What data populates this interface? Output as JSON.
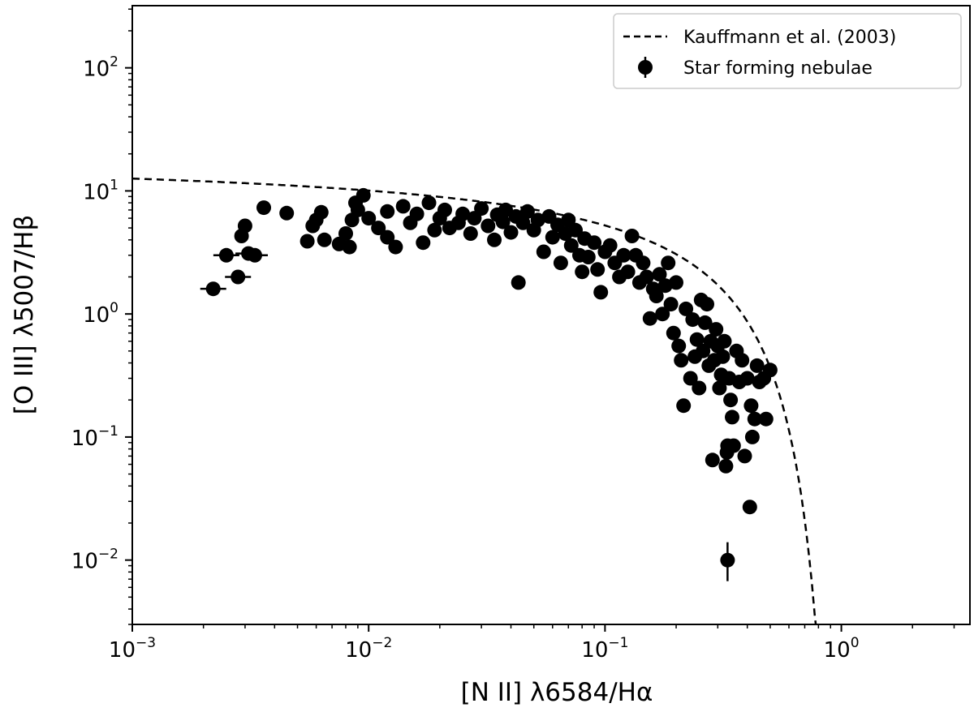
{
  "chart_data": {
    "type": "scatter",
    "xscale": "log",
    "yscale": "log",
    "xlim": [
      0.001,
      3.5
    ],
    "ylim": [
      0.003,
      320
    ],
    "xlabel": "[N II] λ6584/Hα",
    "ylabel": "[O III] λ5007/Hβ",
    "x_ticks": [
      {
        "base": "10",
        "exp": "−3",
        "value": 0.001
      },
      {
        "base": "10",
        "exp": "−2",
        "value": 0.01
      },
      {
        "base": "10",
        "exp": "−1",
        "value": 0.1
      },
      {
        "base": "10",
        "exp": "0",
        "value": 1
      }
    ],
    "y_ticks": [
      {
        "base": "10",
        "exp": "−2",
        "value": 0.01
      },
      {
        "base": "10",
        "exp": "−1",
        "value": 0.1
      },
      {
        "base": "10",
        "exp": "0",
        "value": 1
      },
      {
        "base": "10",
        "exp": "1",
        "value": 10
      },
      {
        "base": "10",
        "exp": "2",
        "value": 100
      }
    ],
    "legend": {
      "placement": "upper right",
      "entries": [
        {
          "label": "Kauffmann et al. (2003)",
          "style": "dashed-line"
        },
        {
          "label": "Star forming nebulae",
          "style": "marker-errorbar"
        }
      ]
    },
    "series": [
      {
        "name": "Kauffmann et al. (2003)",
        "kind": "curve",
        "formula": "log10(y) = 0.61 / (log10(x) - 0.05) + 1.3",
        "style": "dashed",
        "color": "#000000"
      },
      {
        "name": "Star forming nebulae",
        "kind": "points",
        "color": "#000000",
        "points": [
          [
            0.0022,
            1.6
          ],
          [
            0.0025,
            3.0
          ],
          [
            0.0028,
            2.0
          ],
          [
            0.0029,
            4.3
          ],
          [
            0.003,
            5.2
          ],
          [
            0.0031,
            3.1
          ],
          [
            0.0033,
            3.0
          ],
          [
            0.0036,
            7.3
          ],
          [
            0.0045,
            6.6
          ],
          [
            0.0055,
            3.9
          ],
          [
            0.0058,
            5.2
          ],
          [
            0.006,
            5.8
          ],
          [
            0.0063,
            6.7
          ],
          [
            0.0065,
            4.0
          ],
          [
            0.0075,
            3.7
          ],
          [
            0.008,
            4.5
          ],
          [
            0.0083,
            3.5
          ],
          [
            0.0085,
            5.8
          ],
          [
            0.009,
            7.0
          ],
          [
            0.0088,
            8.0
          ],
          [
            0.0095,
            9.2
          ],
          [
            0.01,
            6.0
          ],
          [
            0.011,
            5.0
          ],
          [
            0.012,
            6.8
          ],
          [
            0.012,
            4.2
          ],
          [
            0.013,
            3.5
          ],
          [
            0.014,
            7.5
          ],
          [
            0.015,
            5.5
          ],
          [
            0.016,
            6.5
          ],
          [
            0.017,
            3.8
          ],
          [
            0.018,
            8.0
          ],
          [
            0.019,
            4.8
          ],
          [
            0.02,
            6.0
          ],
          [
            0.021,
            7.0
          ],
          [
            0.022,
            5.0
          ],
          [
            0.024,
            5.5
          ],
          [
            0.025,
            6.5
          ],
          [
            0.027,
            4.5
          ],
          [
            0.028,
            6.0
          ],
          [
            0.03,
            7.2
          ],
          [
            0.032,
            5.2
          ],
          [
            0.034,
            4.0
          ],
          [
            0.035,
            6.4
          ],
          [
            0.037,
            5.6
          ],
          [
            0.038,
            7.0
          ],
          [
            0.04,
            4.6
          ],
          [
            0.042,
            6.2
          ],
          [
            0.043,
            1.8
          ],
          [
            0.045,
            5.5
          ],
          [
            0.047,
            6.8
          ],
          [
            0.05,
            4.8
          ],
          [
            0.052,
            5.8
          ],
          [
            0.055,
            3.2
          ],
          [
            0.058,
            6.2
          ],
          [
            0.06,
            4.2
          ],
          [
            0.063,
            5.3
          ],
          [
            0.065,
            2.6
          ],
          [
            0.068,
            4.5
          ],
          [
            0.07,
            5.8
          ],
          [
            0.072,
            3.6
          ],
          [
            0.075,
            4.8
          ],
          [
            0.078,
            3.0
          ],
          [
            0.08,
            2.2
          ],
          [
            0.082,
            4.1
          ],
          [
            0.085,
            2.9
          ],
          [
            0.09,
            3.8
          ],
          [
            0.093,
            2.3
          ],
          [
            0.096,
            1.5
          ],
          [
            0.1,
            3.2
          ],
          [
            0.105,
            3.6
          ],
          [
            0.11,
            2.6
          ],
          [
            0.115,
            2.0
          ],
          [
            0.12,
            3.0
          ],
          [
            0.125,
            2.2
          ],
          [
            0.13,
            4.3
          ],
          [
            0.135,
            3.0
          ],
          [
            0.14,
            1.8
          ],
          [
            0.145,
            2.6
          ],
          [
            0.15,
            2.0
          ],
          [
            0.155,
            0.92
          ],
          [
            0.16,
            1.6
          ],
          [
            0.165,
            1.4
          ],
          [
            0.17,
            2.1
          ],
          [
            0.175,
            1.0
          ],
          [
            0.18,
            1.7
          ],
          [
            0.185,
            2.6
          ],
          [
            0.19,
            1.2
          ],
          [
            0.195,
            0.7
          ],
          [
            0.2,
            1.8
          ],
          [
            0.205,
            0.55
          ],
          [
            0.21,
            0.42
          ],
          [
            0.215,
            0.18
          ],
          [
            0.22,
            1.1
          ],
          [
            0.23,
            0.3
          ],
          [
            0.235,
            0.9
          ],
          [
            0.24,
            0.45
          ],
          [
            0.245,
            0.62
          ],
          [
            0.25,
            0.25
          ],
          [
            0.255,
            1.3
          ],
          [
            0.26,
            0.5
          ],
          [
            0.265,
            0.85
          ],
          [
            0.27,
            1.2
          ],
          [
            0.275,
            0.38
          ],
          [
            0.28,
            0.6
          ],
          [
            0.285,
            0.065
          ],
          [
            0.29,
            0.42
          ],
          [
            0.295,
            0.75
          ],
          [
            0.3,
            0.55
          ],
          [
            0.305,
            0.25
          ],
          [
            0.31,
            0.32
          ],
          [
            0.315,
            0.45
          ],
          [
            0.32,
            0.6
          ],
          [
            0.325,
            0.058
          ],
          [
            0.328,
            0.075
          ],
          [
            0.33,
            0.085
          ],
          [
            0.335,
            0.3
          ],
          [
            0.34,
            0.2
          ],
          [
            0.345,
            0.145
          ],
          [
            0.35,
            0.085
          ],
          [
            0.36,
            0.5
          ],
          [
            0.37,
            0.28
          ],
          [
            0.38,
            0.42
          ],
          [
            0.39,
            0.07
          ],
          [
            0.4,
            0.3
          ],
          [
            0.41,
            0.027
          ],
          [
            0.415,
            0.18
          ],
          [
            0.42,
            0.1
          ],
          [
            0.43,
            0.14
          ],
          [
            0.44,
            0.38
          ],
          [
            0.45,
            0.28
          ],
          [
            0.47,
            0.3
          ],
          [
            0.48,
            0.14
          ],
          [
            0.5,
            0.35
          ],
          [
            0.33,
            0.01
          ]
        ]
      }
    ]
  }
}
